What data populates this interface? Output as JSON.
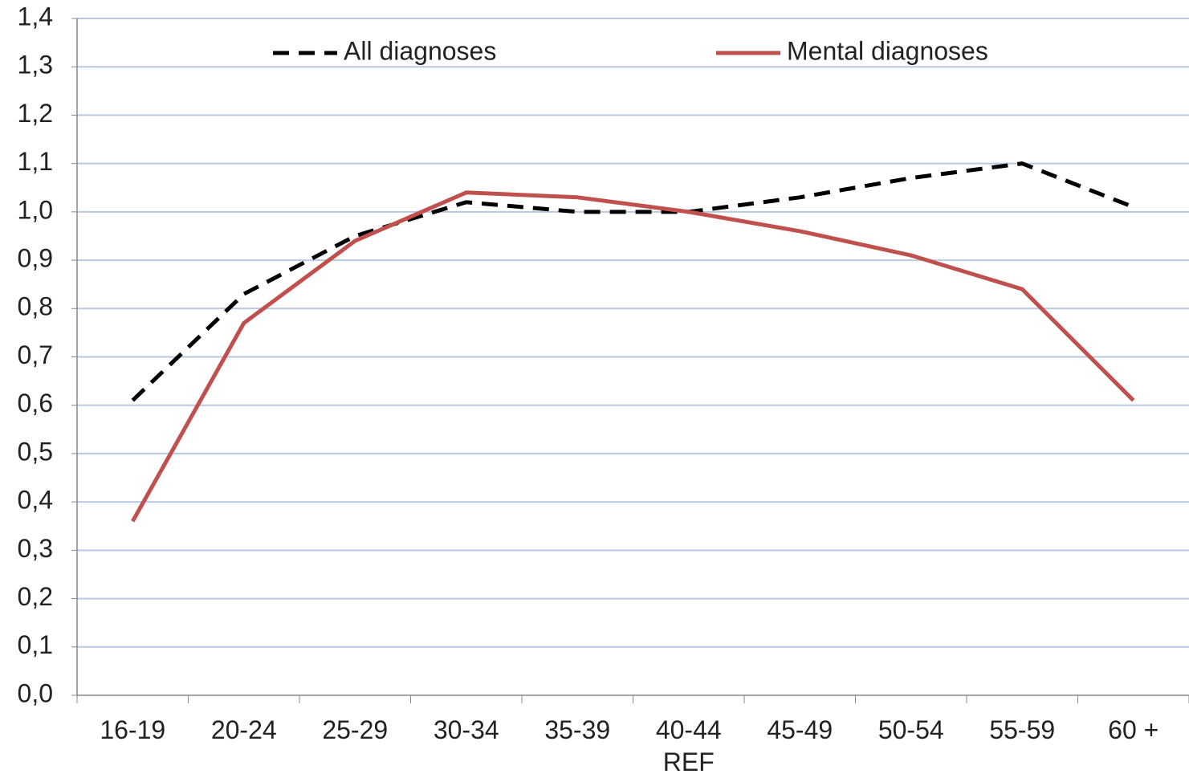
{
  "chart_data": {
    "type": "line",
    "categories": [
      "16-19",
      "20-24",
      "25-29",
      "30-34",
      "35-39",
      "40-44\nREF",
      "45-49",
      "50-54",
      "55-59",
      "60 +"
    ],
    "series": [
      {
        "name": "All diagnoses",
        "color": "#000000",
        "dash": true,
        "values": [
          0.61,
          0.83,
          0.95,
          1.02,
          1.0,
          1.0,
          1.03,
          1.07,
          1.1,
          1.01
        ]
      },
      {
        "name": "Mental diagnoses",
        "color": "#c0504d",
        "dash": false,
        "values": [
          0.36,
          0.77,
          0.94,
          1.04,
          1.03,
          1.0,
          0.96,
          0.91,
          0.84,
          0.61
        ]
      }
    ],
    "ylim": [
      0,
      1.4
    ],
    "yticks": [
      {
        "value": 0,
        "label": "0,0"
      },
      {
        "value": 0.1,
        "label": "0,1"
      },
      {
        "value": 0.2,
        "label": "0,2"
      },
      {
        "value": 0.3,
        "label": "0,3"
      },
      {
        "value": 0.4,
        "label": "0,4"
      },
      {
        "value": 0.5,
        "label": "0,5"
      },
      {
        "value": 0.6,
        "label": "0,6"
      },
      {
        "value": 0.7,
        "label": "0,7"
      },
      {
        "value": 0.8,
        "label": "0,8"
      },
      {
        "value": 0.9,
        "label": "0,9"
      },
      {
        "value": 1.0,
        "label": "1,0"
      },
      {
        "value": 1.1,
        "label": "1,1"
      },
      {
        "value": 1.2,
        "label": "1,2"
      },
      {
        "value": 1.3,
        "label": "1,3"
      },
      {
        "value": 1.4,
        "label": "1,4"
      }
    ],
    "grid": true
  }
}
